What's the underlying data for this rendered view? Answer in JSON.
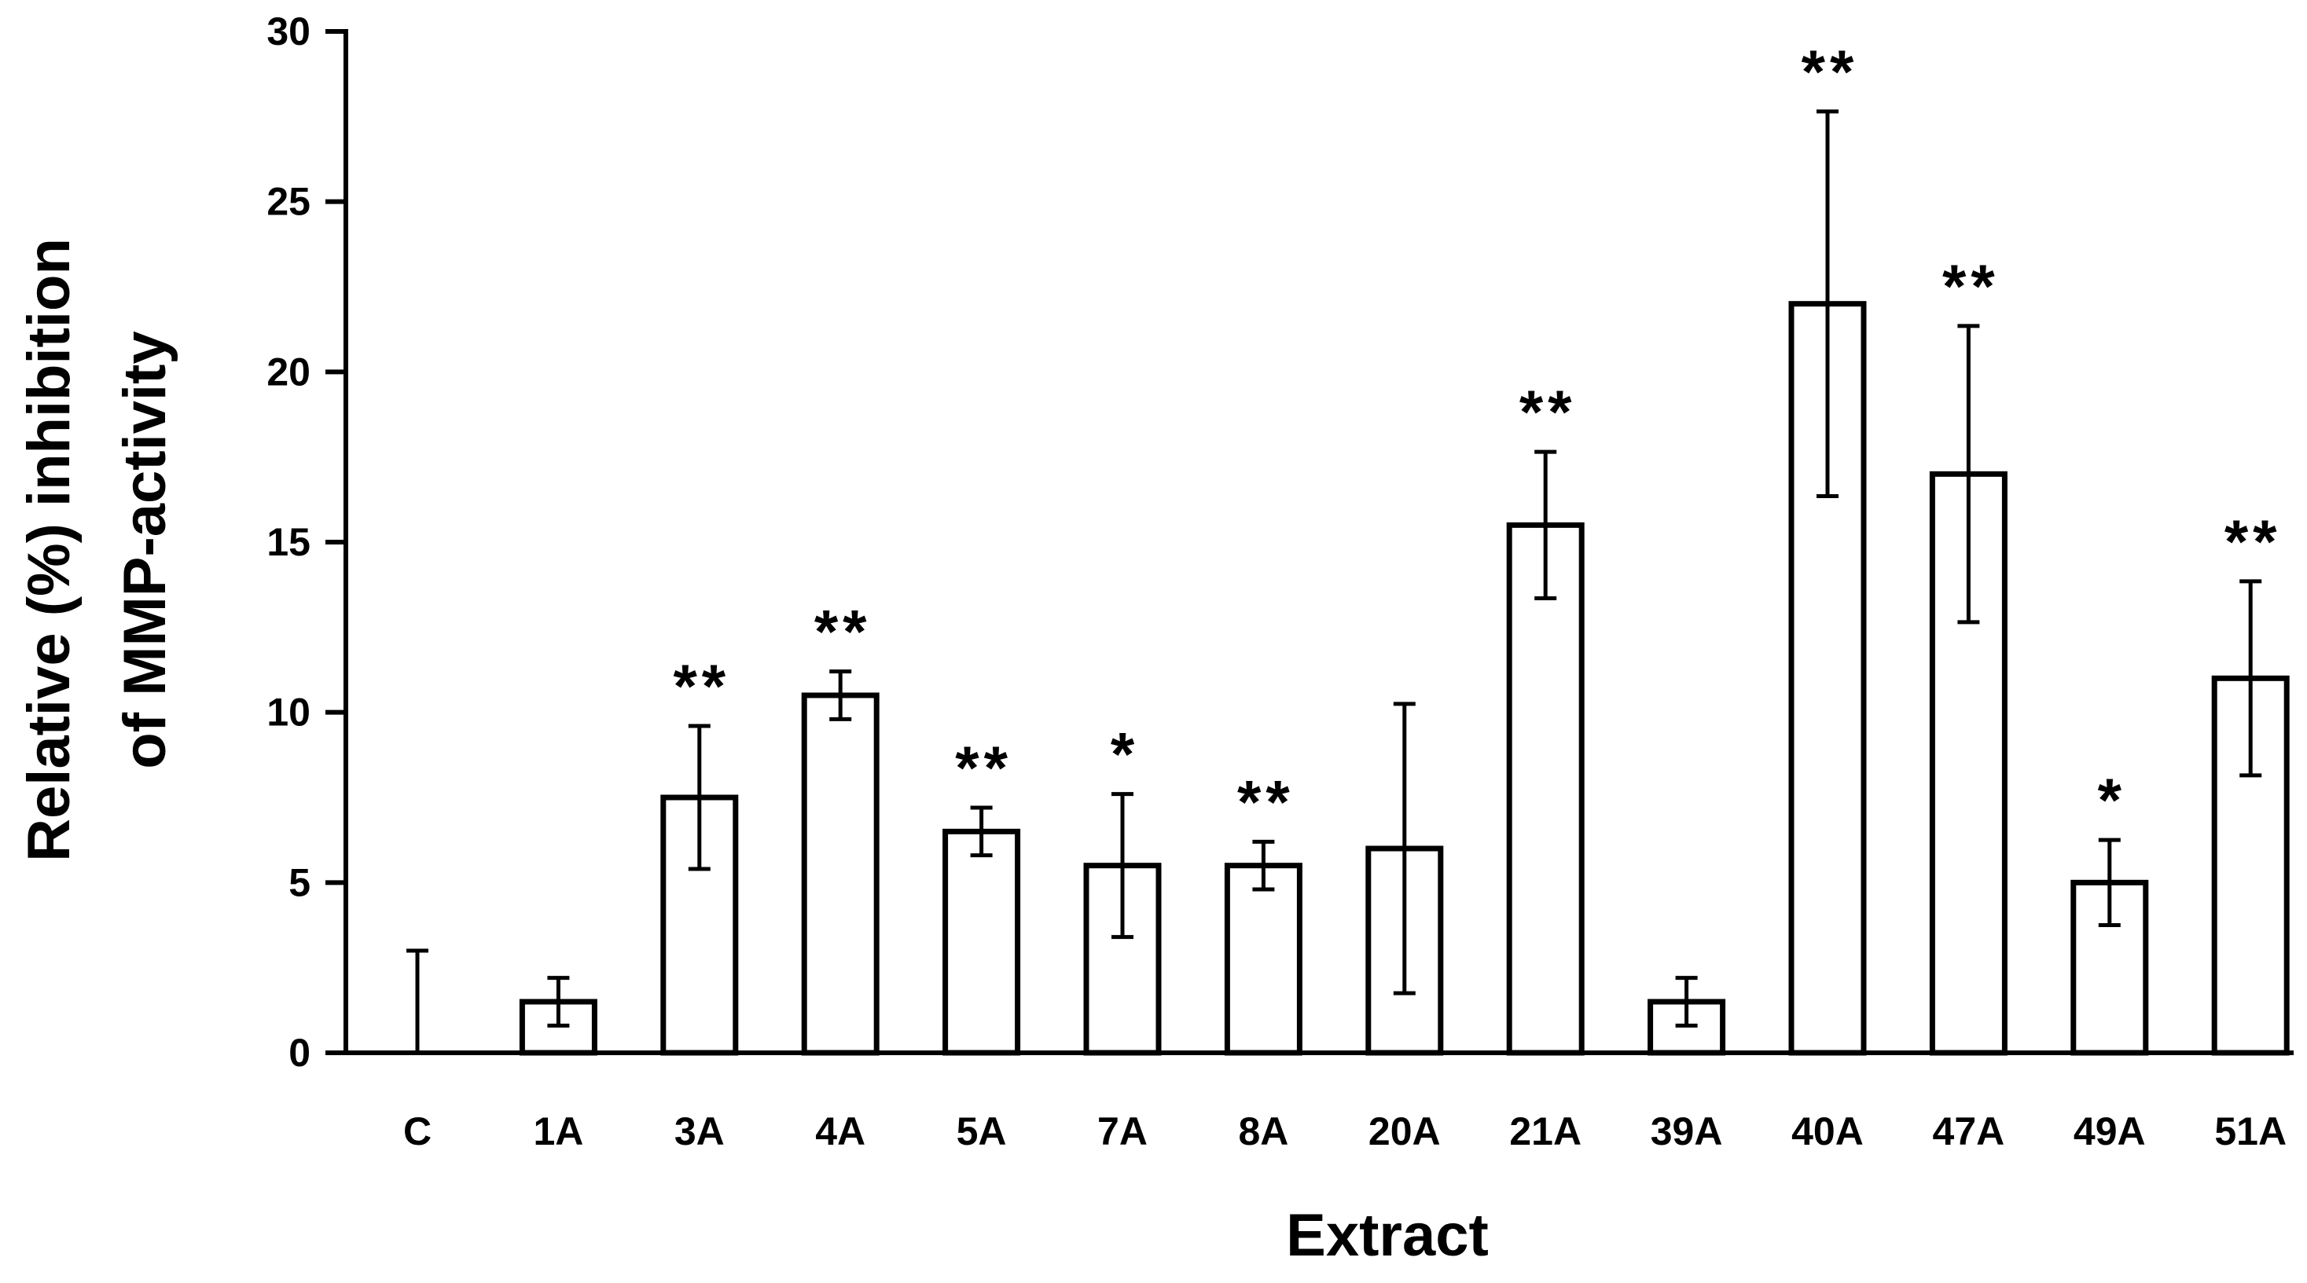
{
  "chart_data": {
    "type": "bar",
    "title": "",
    "xlabel": "Extract",
    "ylabel_lines": [
      "Relative (%) inhibition",
      "of MMP-activity"
    ],
    "ylim": [
      0,
      30
    ],
    "yticks": [
      0,
      5,
      10,
      15,
      20,
      25,
      30
    ],
    "ytick_labels": [
      "0",
      "5",
      "10",
      "15",
      "20",
      "25",
      "30"
    ],
    "grid": false,
    "legend": "none",
    "categories": [
      "C",
      "1A",
      "3A",
      "4A",
      "5A",
      "7A",
      "8A",
      "20A",
      "21A",
      "39A",
      "40A",
      "47A",
      "49A",
      "51A"
    ],
    "values": [
      0,
      1.5,
      7.5,
      10.5,
      6.5,
      5.5,
      5.5,
      6.0,
      15.5,
      1.5,
      22.0,
      17.0,
      5.0,
      11.0
    ],
    "errors": [
      3.0,
      0.7,
      2.1,
      0.7,
      0.7,
      2.1,
      0.7,
      4.25,
      2.15,
      0.7,
      5.65,
      4.35,
      1.25,
      2.85
    ],
    "significance": [
      "",
      "",
      "**",
      "**",
      "**",
      "*",
      "**",
      "",
      "**",
      "",
      "**",
      "**",
      "*",
      "**"
    ]
  }
}
